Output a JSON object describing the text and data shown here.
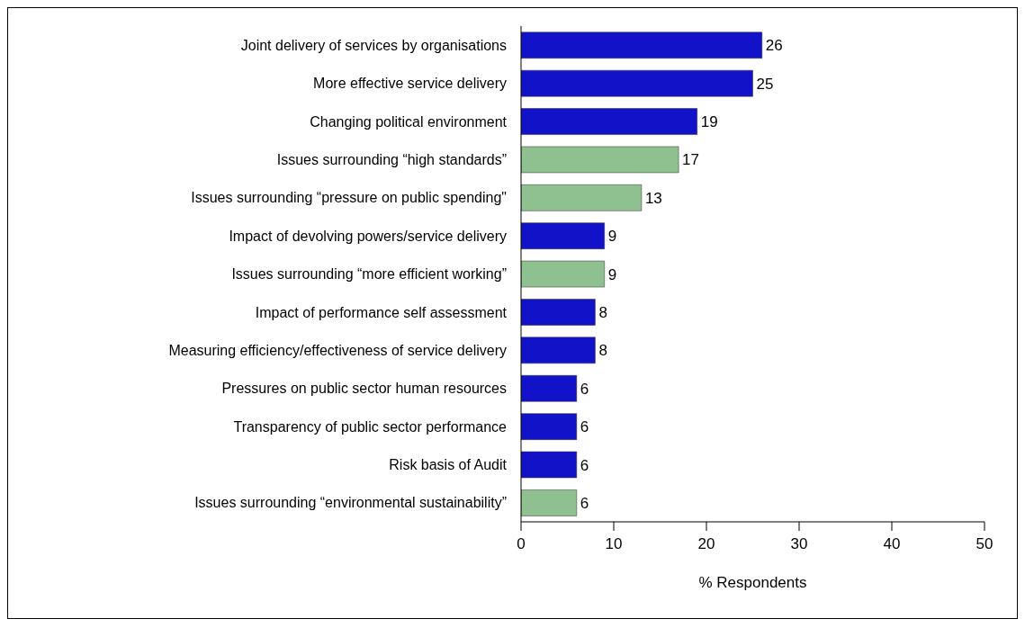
{
  "chart_data": {
    "type": "bar",
    "orientation": "horizontal",
    "categories": [
      "Joint delivery of services by organisations",
      "More effective service delivery",
      "Changing political environment",
      "Issues surrounding “high standards”",
      "Issues surrounding “pressure on public spending\"",
      "Impact of devolving powers/service delivery",
      "Issues surrounding “more efficient working”",
      "Impact of performance self assessment",
      "Measuring efficiency/effectiveness of service delivery",
      "Pressures on public sector human resources",
      "Transparency of public sector performance",
      "Risk basis of Audit",
      "Issues surrounding “environmental sustainability”"
    ],
    "values": [
      26,
      25,
      19,
      17,
      13,
      9,
      9,
      8,
      8,
      6,
      6,
      6,
      6
    ],
    "colors": [
      "#1212c8",
      "#1212c8",
      "#1212c8",
      "#8fc08f",
      "#8fc08f",
      "#1212c8",
      "#8fc08f",
      "#1212c8",
      "#1212c8",
      "#1212c8",
      "#1212c8",
      "#1212c8",
      "#8fc08f"
    ],
    "xlim": [
      0,
      50
    ],
    "xticks": [
      0,
      10,
      20,
      30,
      40,
      50
    ],
    "xlabel": "% Respondents",
    "data_labels": true
  }
}
